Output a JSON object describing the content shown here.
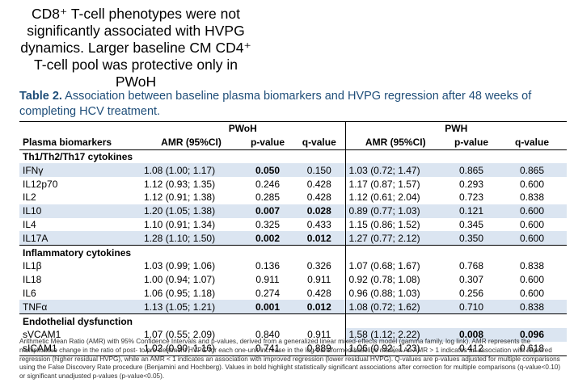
{
  "headline": "CD8⁺ T-cell phenotypes were not significantly associated with HVPG dynamics. Larger baseline CM CD4⁺ T-cell pool was protective only in PWoH",
  "caption": {
    "label": "Table 2.",
    "text": "Association between baseline plasma biomarkers and HVPG regression after 48 weeks of completing HCV treatment."
  },
  "table": {
    "group_pwoh": "PWoH",
    "group_pwh": "PWH",
    "col_marker": "Plasma biomarkers",
    "col_amr": "AMR (95%CI)",
    "col_p": "p-value",
    "col_q": "q-value",
    "sections": [
      {
        "title": "Th1/Th2/Th17 cytokines",
        "rows": [
          {
            "marker": "IFNγ",
            "pwoh_amr": "1.08 (1.00; 1.17)",
            "pwoh_p": "0.050",
            "pwoh_q": "0.150",
            "pwh_amr": "1.03 (0.72; 1.47)",
            "pwh_p": "0.865",
            "pwh_q": "0.865"
          },
          {
            "marker": "IL12p70",
            "pwoh_amr": "1.12 (0.93; 1.35)",
            "pwoh_p": "0.246",
            "pwoh_q": "0.428",
            "pwh_amr": "1.17 (0.87; 1.57)",
            "pwh_p": "0.293",
            "pwh_q": "0.600"
          },
          {
            "marker": "IL2",
            "pwoh_amr": "1.12 (0.91; 1.38)",
            "pwoh_p": "0.285",
            "pwoh_q": "0.428",
            "pwh_amr": "1.12 (0.61; 2.04)",
            "pwh_p": "0.723",
            "pwh_q": "0.838"
          },
          {
            "marker": "IL10",
            "pwoh_amr": "1.20 (1.05; 1.38)",
            "pwoh_p": "0.007",
            "pwoh_q": "0.028",
            "pwh_amr": "0.89 (0.77; 1.03)",
            "pwh_p": "0.121",
            "pwh_q": "0.600"
          },
          {
            "marker": "IL4",
            "pwoh_amr": "1.10 (0.91; 1.34)",
            "pwoh_p": "0.325",
            "pwoh_q": "0.433",
            "pwh_amr": "1.15 (0.86; 1.52)",
            "pwh_p": "0.345",
            "pwh_q": "0.600"
          },
          {
            "marker": "IL17A",
            "pwoh_amr": "1.28 (1.10; 1.50)",
            "pwoh_p": "0.002",
            "pwoh_q": "0.012",
            "pwh_amr": "1.27 (0.77; 2.12)",
            "pwh_p": "0.350",
            "pwh_q": "0.600"
          }
        ]
      },
      {
        "title": "Inflammatory cytokines",
        "rows": [
          {
            "marker": "IL1β",
            "pwoh_amr": "1.03 (0.99; 1.06)",
            "pwoh_p": "0.136",
            "pwoh_q": "0.326",
            "pwh_amr": "1.07 (0.68; 1.67)",
            "pwh_p": "0.768",
            "pwh_q": "0.838"
          },
          {
            "marker": "IL18",
            "pwoh_amr": "1.00 (0.94; 1.07)",
            "pwoh_p": "0.911",
            "pwoh_q": "0.911",
            "pwh_amr": "0.92 (0.78; 1.08)",
            "pwh_p": "0.307",
            "pwh_q": "0.600"
          },
          {
            "marker": "IL6",
            "pwoh_amr": "1.06 (0.95; 1.18)",
            "pwoh_p": "0.274",
            "pwoh_q": "0.428",
            "pwh_amr": "0.96 (0.88; 1.03)",
            "pwh_p": "0.256",
            "pwh_q": "0.600"
          },
          {
            "marker": "TNFα",
            "pwoh_amr": "1.13 (1.05; 1.21)",
            "pwoh_p": "0.001",
            "pwoh_q": "0.012",
            "pwh_amr": "1.08 (0.72; 1.62)",
            "pwh_p": "0.710",
            "pwh_q": "0.838"
          }
        ]
      },
      {
        "title": "Endothelial dysfunction",
        "rows": [
          {
            "marker": "sVCAM1",
            "pwoh_amr": "1.07 (0.55; 2.09)",
            "pwoh_p": "0.840",
            "pwoh_q": "0.911",
            "pwh_amr": "1.58 (1.12; 2.22)",
            "pwh_p": "0.008",
            "pwh_q": "0.096"
          },
          {
            "marker": "sICAM1",
            "pwoh_amr": "1.02 (0.90; 1.16)",
            "pwoh_p": "0.741",
            "pwoh_q": "0.889",
            "pwh_amr": "1.06 (0.92; 1.23)",
            "pwh_p": "0.412",
            "pwh_q": "0.618"
          }
        ]
      }
    ]
  },
  "footnote": "Arithmetic Mean Ratio (AMR) with 95% Confidence Intervals and p-values, derived from a generalized linear mixed-effects model (gamma family, log link). AMR represents the multiplicative change in the ratio of post- to pre-treatment HVPG for each one-unit increase in the log-transformed baseline marker. An AMR > 1 indicates an association with impaired regression (higher residual HVPG), while an AMR < 1 indicates an association with improved regression (lower residual HVPG). Q-values are p-values adjusted for multiple comparisons using the False Discovery Rate procedure (Benjamini and Hochberg). Values in bold highlight statistically significant associations after correction for multiple comparisons (q-value<0.10) or significant unadjusted p-values (p-value<0.05)."
}
